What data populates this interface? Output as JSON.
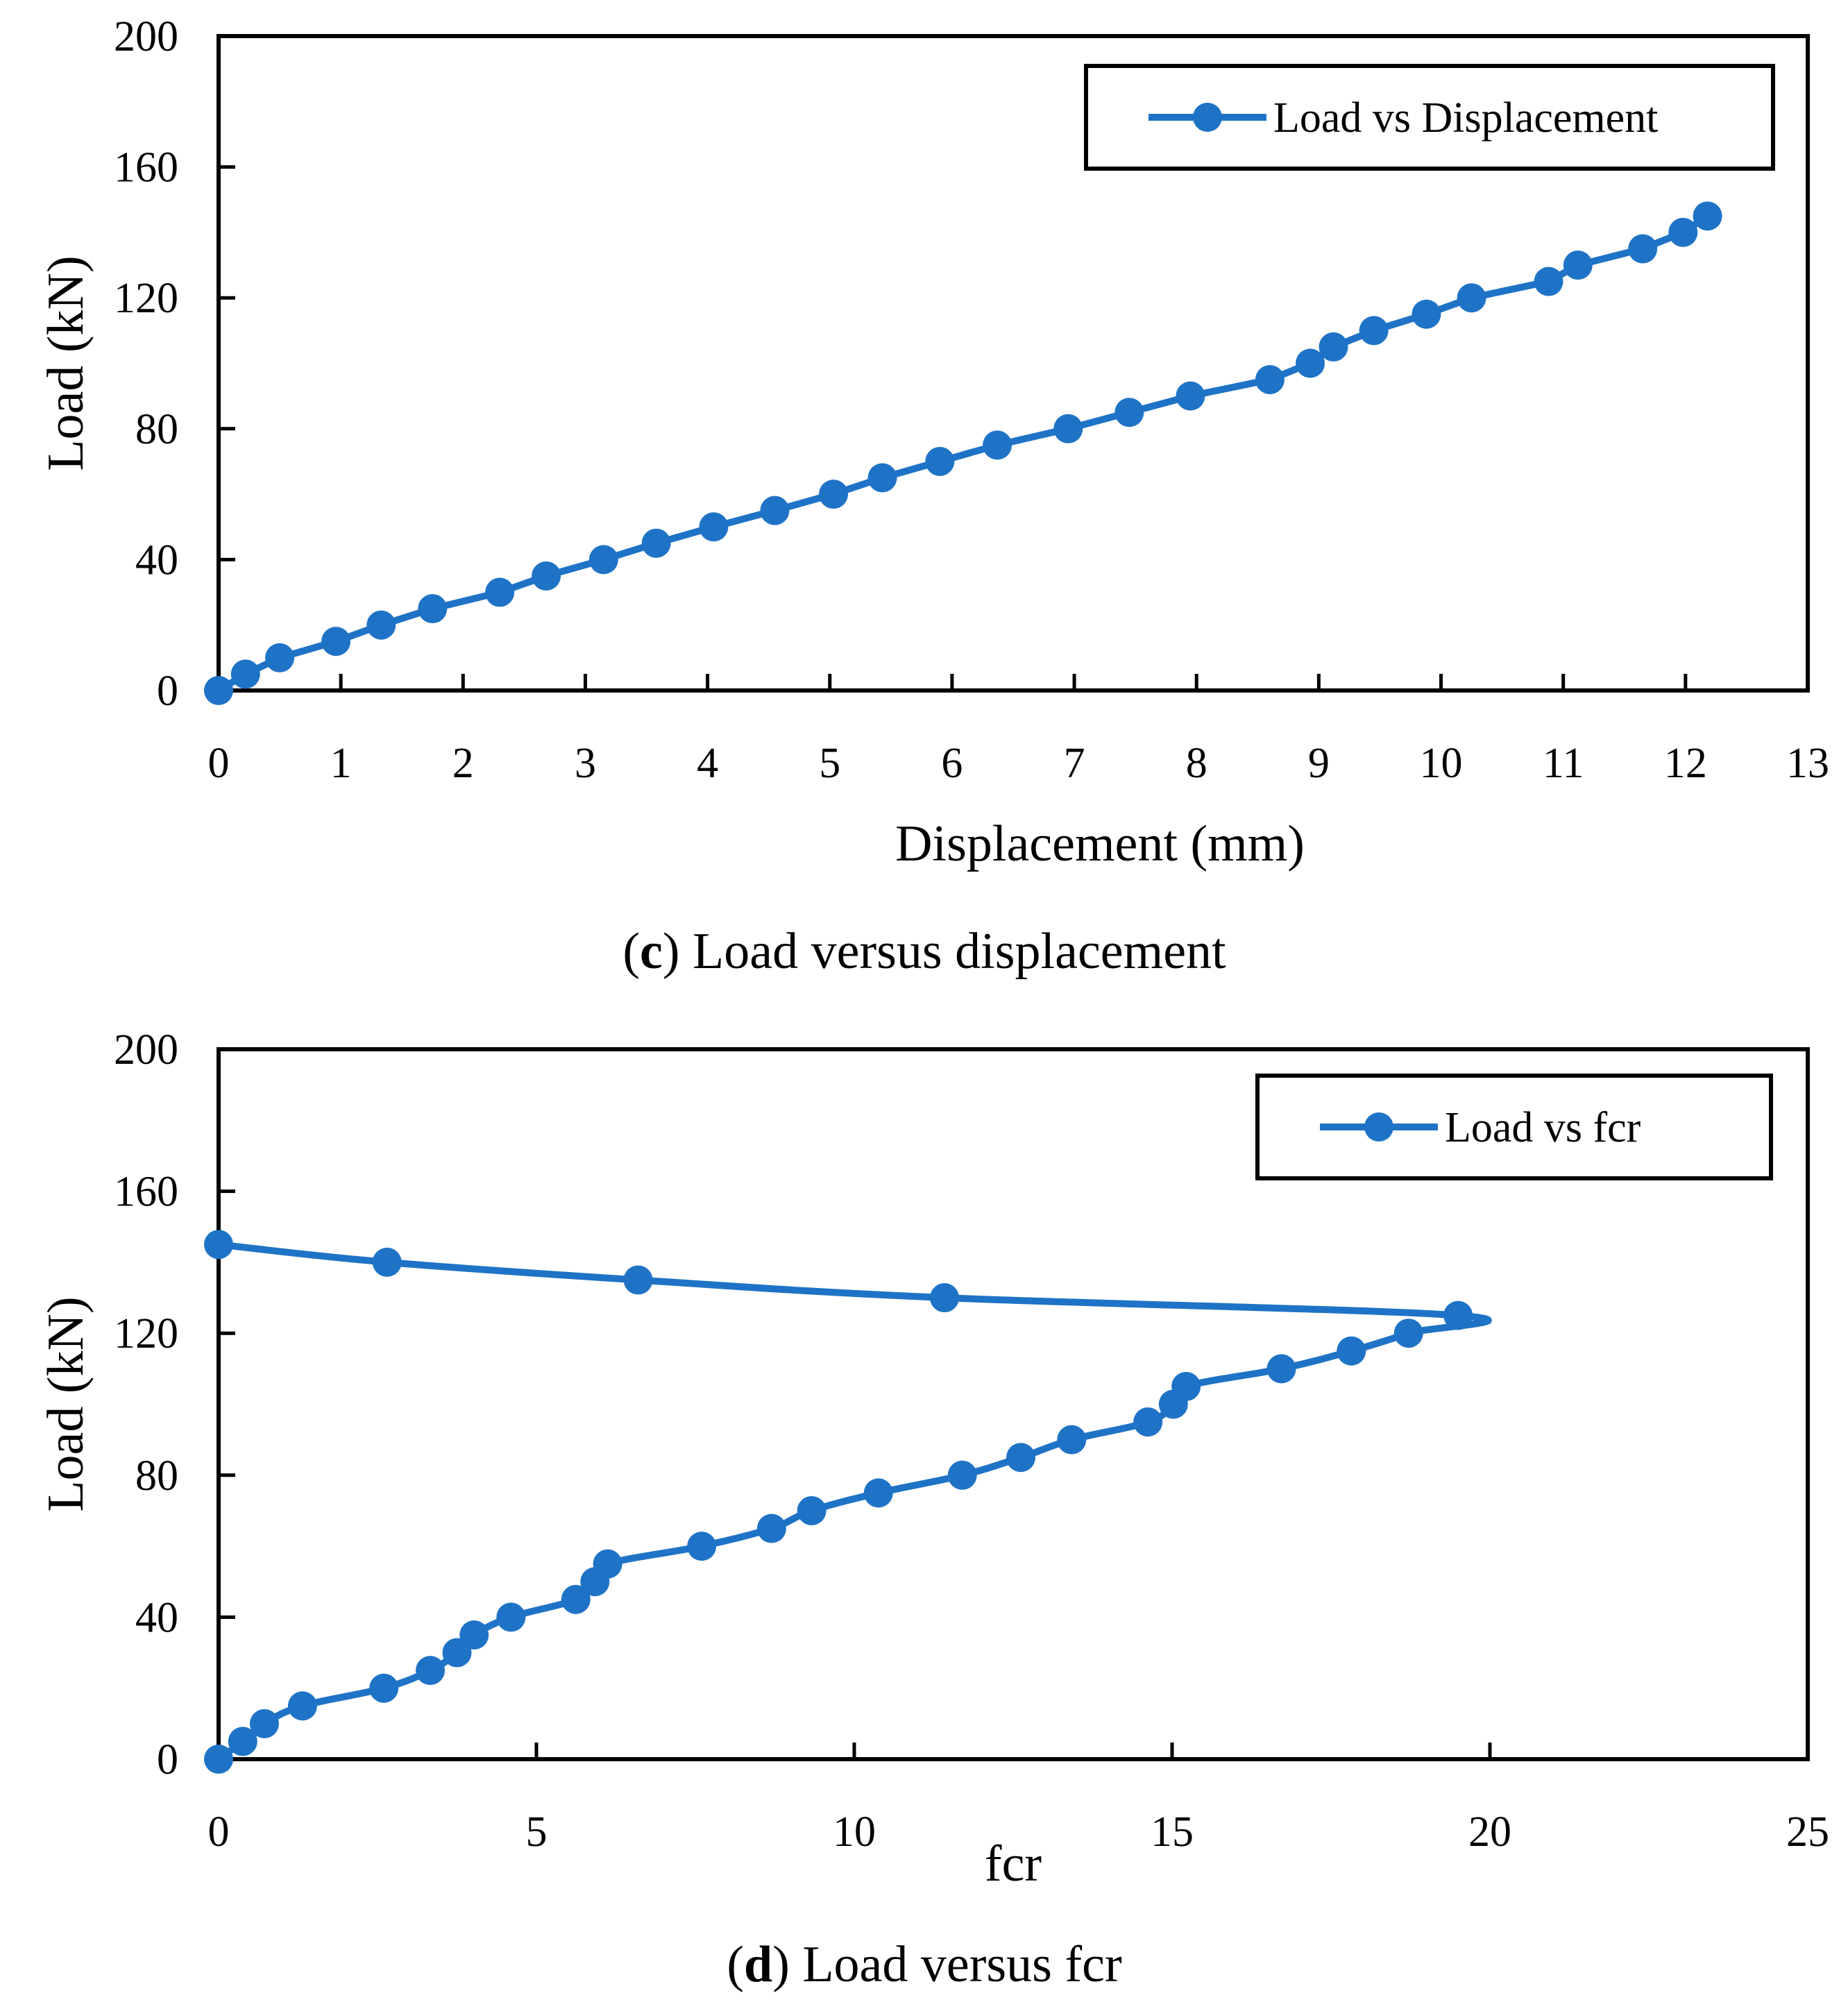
{
  "colors": {
    "series": "#1f73c6",
    "axis": "#000000",
    "background": "#ffffff"
  },
  "chart_data": [
    {
      "type": "line",
      "title": "",
      "caption_letter": "c",
      "caption_text": ") Load versus displacement",
      "caption_open": "(",
      "xlabel": "Displacement (mm)",
      "ylabel": "Load (kN)",
      "xlim": [
        0,
        13
      ],
      "ylim": [
        0,
        200
      ],
      "xticks": [
        0,
        1,
        2,
        3,
        4,
        5,
        6,
        7,
        8,
        9,
        10,
        11,
        12,
        13
      ],
      "yticks": [
        0,
        40,
        80,
        120,
        160,
        200
      ],
      "legend": {
        "label": "Load vs Displacement",
        "position": "top-right"
      },
      "series": [
        {
          "name": "Load vs Displacement",
          "smooth": false,
          "x": [
            0,
            0.22,
            0.5,
            0.96,
            1.33,
            1.75,
            2.3,
            2.68,
            3.15,
            3.58,
            4.05,
            4.55,
            5.03,
            5.43,
            5.9,
            6.37,
            6.95,
            7.45,
            7.95,
            8.6,
            8.93,
            9.12,
            9.45,
            9.88,
            10.25,
            10.88,
            11.12,
            11.65,
            11.98,
            12.18
          ],
          "y": [
            0,
            5,
            10,
            15,
            20,
            25,
            30,
            35,
            40,
            45,
            50,
            55,
            60,
            65,
            70,
            75,
            80,
            85,
            90,
            95,
            100,
            105,
            110,
            115,
            120,
            125,
            130,
            135,
            140,
            145
          ]
        }
      ]
    },
    {
      "type": "line",
      "title": "",
      "caption_letter": "d",
      "caption_text": ") Load versus fcr",
      "caption_open": "(",
      "xlabel": "fcr",
      "ylabel": "Load (kN)",
      "xlim": [
        0,
        25
      ],
      "ylim": [
        0,
        200
      ],
      "xticks": [
        0,
        5,
        10,
        15,
        20,
        25
      ],
      "yticks": [
        0,
        40,
        80,
        120,
        160,
        200
      ],
      "legend": {
        "label": "Load vs fcr",
        "position": "top-right"
      },
      "series": [
        {
          "name": "Load vs fcr",
          "smooth": true,
          "x": [
            0,
            0.38,
            0.72,
            1.32,
            2.6,
            3.33,
            3.75,
            4.02,
            4.6,
            5.62,
            5.92,
            6.12,
            7.6,
            8.7,
            9.33,
            10.38,
            11.7,
            12.62,
            13.42,
            14.62,
            15.02,
            15.22,
            16.72,
            17.82,
            18.72,
            19.5,
            11.42,
            6.6,
            2.65,
            0
          ],
          "y": [
            0,
            5,
            10,
            15,
            20,
            25,
            30,
            35,
            40,
            45,
            50,
            55,
            60,
            65,
            70,
            75,
            80,
            85,
            90,
            95,
            100,
            105,
            110,
            115,
            120,
            125,
            130,
            135,
            140,
            145
          ]
        }
      ]
    }
  ]
}
